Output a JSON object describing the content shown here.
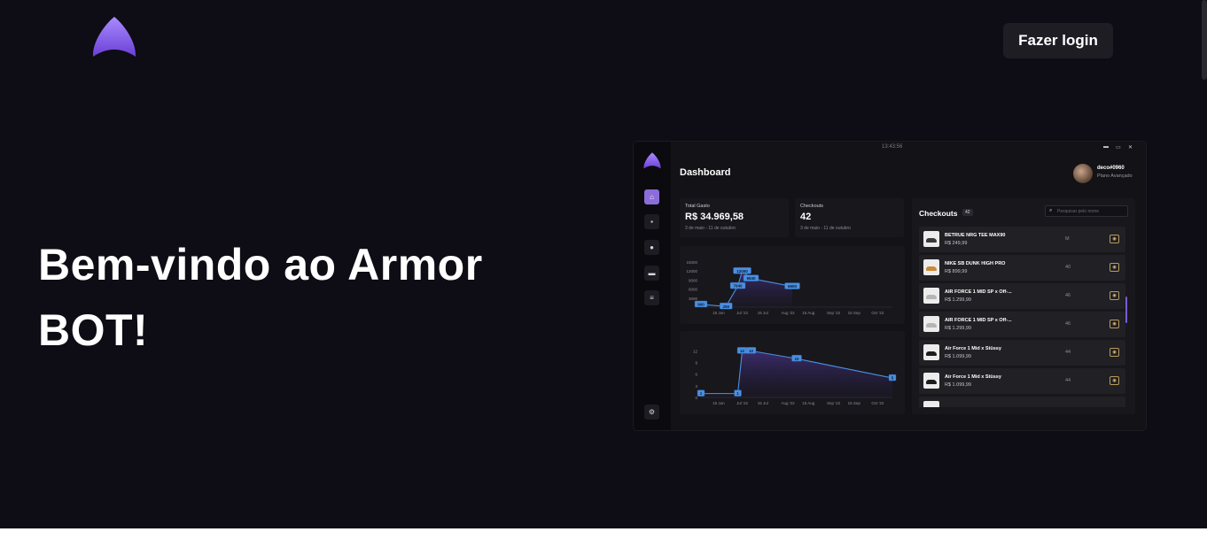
{
  "header": {
    "login_label": "Fazer login"
  },
  "hero": {
    "title_line1": "Bem-vindo ao Armor",
    "title_line2": "BOT!"
  },
  "colors": {
    "background": "#0e0c14",
    "accent": "#8b6cd9",
    "button_bg": "#1e1d24",
    "chart_line": "#4a90e2"
  },
  "mockup": {
    "time": "13:43:56",
    "window_controls": [
      "▬",
      "▭",
      "✕"
    ],
    "title": "Dashboard",
    "user": {
      "name": "deco#0960",
      "plan": "Plano Avançado"
    },
    "sidebar_icons": [
      "home-icon",
      "bag-icon",
      "user-icon",
      "card-icon",
      "list-icon",
      "settings-icon"
    ],
    "stats": [
      {
        "label": "Total Gasto",
        "value": "R$ 34.969,58",
        "period": "3 de maio - 11 de outubro"
      },
      {
        "label": "Checkouts",
        "value": "42",
        "period": "3 de maio - 11 de outubro"
      }
    ],
    "checkouts": {
      "title": "Checkouts",
      "count": "42",
      "search_placeholder": "Pesquisar pelo nome",
      "items": [
        {
          "name": "BETRUE NRG TEE MAX90",
          "price": "R$ 249,99",
          "size": "M",
          "color": "#3a3a3a"
        },
        {
          "name": "NIKE SB DUNK HIGH PRO",
          "price": "R$ 899,99",
          "size": "40",
          "color": "#c98a3c"
        },
        {
          "name": "AIR FORCE 1 MID SP x Off-...",
          "price": "R$ 1.299,99",
          "size": "46",
          "color": "#b5b5b5"
        },
        {
          "name": "AIR FORCE 1 MID SP x Off-...",
          "price": "R$ 1.299,99",
          "size": "46",
          "color": "#b5b5b5"
        },
        {
          "name": "Air Force 1 Mid x Stüssy",
          "price": "R$ 1.099,99",
          "size": "44",
          "color": "#1c1c1c"
        },
        {
          "name": "Air Force 1 Mid x Stüssy",
          "price": "R$ 1.099,99",
          "size": "44",
          "color": "#1c1c1c"
        },
        {
          "name": "",
          "price": "",
          "size": "",
          "color": "#777777"
        }
      ]
    }
  },
  "chart_data": [
    {
      "type": "area",
      "x": [
        "2022-06-03",
        "2022-06-20",
        "2022-06-28",
        "2022-07-01",
        "2022-07-07",
        "2022-08-04"
      ],
      "values": [
        900,
        250,
        7040,
        12000,
        9530,
        6900
      ],
      "point_labels": [
        "900",
        "250",
        "7040",
        "12000",
        "9530",
        "6900"
      ],
      "ylim": [
        0,
        15000
      ],
      "yticks": [
        "15000",
        "12000",
        "9000",
        "6000",
        "3000"
      ],
      "xticks": [
        "15 Jun",
        "Jul '22",
        "15 Jul",
        "Aug '22",
        "15 Aug",
        "Sep '22",
        "15 Sep",
        "Oct '22"
      ]
    },
    {
      "type": "area",
      "x": [
        "2022-06-03",
        "2022-06-28",
        "2022-07-01",
        "2022-07-07",
        "2022-08-07",
        "2022-10-11"
      ],
      "values": [
        1,
        1,
        12,
        12,
        10,
        5
      ],
      "point_labels": [
        "1",
        "1",
        "12",
        "12",
        "10",
        "5"
      ],
      "ylim": [
        0,
        13
      ],
      "yticks": [
        "12",
        "9",
        "6",
        "3",
        "0"
      ],
      "xticks": [
        "15 Jun",
        "Jul '22",
        "15 Jul",
        "Aug '22",
        "15 Aug",
        "Sep '22",
        "15 Sep",
        "Oct '22"
      ]
    }
  ]
}
